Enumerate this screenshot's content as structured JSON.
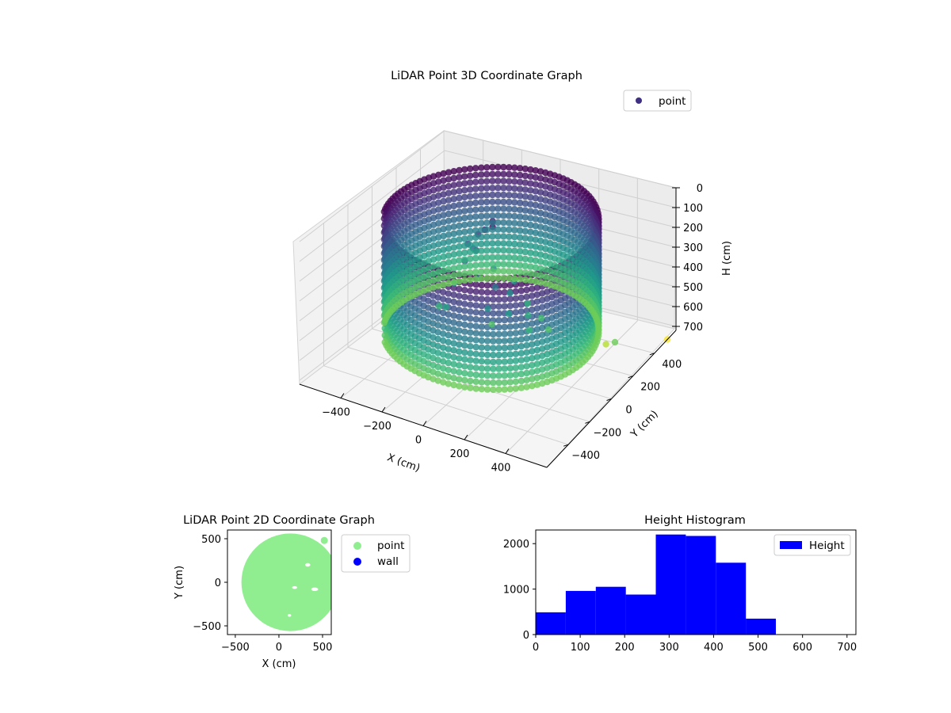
{
  "chart_data": [
    {
      "type": "scatter",
      "projection": "3d",
      "title": "LiDAR Point 3D Coordinate Graph",
      "xlabel": "X (cm)",
      "ylabel": "Y (cm)",
      "zlabel": "H (cm)",
      "xlim": [
        -600,
        600
      ],
      "ylim": [
        -600,
        600
      ],
      "zlim": [
        0,
        720
      ],
      "z_axis_inverted": true,
      "xticks": [
        -400,
        -200,
        0,
        200,
        400
      ],
      "xtick_labels": [
        "−400",
        "−200",
        "0",
        "200",
        "400"
      ],
      "yticks": [
        -400,
        -200,
        0,
        200,
        400
      ],
      "ytick_labels": [
        "−400",
        "−200",
        "0",
        "200",
        "400"
      ],
      "zticks": [
        0,
        100,
        200,
        300,
        400,
        500,
        600,
        700
      ],
      "ztick_labels": [
        "0",
        "100",
        "200",
        "300",
        "400",
        "500",
        "600",
        "700"
      ],
      "grid": true,
      "legend": {
        "placement": "top-right",
        "entries": [
          "point"
        ]
      },
      "colormap": "viridis",
      "color_by": "H (cm)",
      "series": [
        {
          "name": "point",
          "legend_color": "#3e2f83",
          "shape": "cylindrical wall, radius ~470, H 0-560, plus central cluster",
          "wall_radius": 470,
          "wall_h_range": [
            0,
            560
          ],
          "interior_points": [
            [
              -80,
              20,
              100
            ],
            [
              -60,
              -30,
              150
            ],
            [
              -40,
              10,
              60
            ],
            [
              -100,
              -60,
              200
            ],
            [
              -20,
              -80,
              250
            ],
            [
              40,
              -40,
              300
            ],
            [
              80,
              20,
              350
            ],
            [
              120,
              -60,
              400
            ],
            [
              160,
              40,
              450
            ],
            [
              200,
              -20,
              480
            ],
            [
              -140,
              80,
              220
            ],
            [
              -60,
              120,
              320
            ],
            [
              20,
              160,
              380
            ],
            [
              100,
              140,
              460
            ],
            [
              180,
              120,
              500
            ],
            [
              -160,
              -120,
              420
            ],
            [
              -200,
              20,
              380
            ],
            [
              60,
              -140,
              350
            ],
            [
              0,
              0,
              520
            ],
            [
              -120,
              0,
              150
            ],
            [
              240,
              80,
              520
            ],
            [
              -240,
              -40,
              480
            ],
            [
              -30,
              60,
              40
            ],
            [
              10,
              -10,
              20
            ]
          ],
          "outlier_points": [
            [
              520,
              180,
              560
            ],
            [
              600,
              520,
              720
            ],
            [
              430,
              260,
              640
            ]
          ]
        }
      ]
    },
    {
      "type": "scatter",
      "title": "LiDAR Point 2D Coordinate Graph",
      "xlabel": "X (cm)",
      "ylabel": "Y (cm)",
      "xlim": [
        -590,
        600
      ],
      "ylim": [
        -600,
        600
      ],
      "xticks": [
        -500,
        0,
        500
      ],
      "xtick_labels": [
        "−500",
        "0",
        "500"
      ],
      "yticks": [
        -500,
        0,
        500
      ],
      "ytick_labels": [
        "−500",
        "0",
        "500"
      ],
      "legend": {
        "placement": "outside-right",
        "entries": [
          "point",
          "wall"
        ]
      },
      "series": [
        {
          "name": "point",
          "color": "#90ee90",
          "shape": "filled disc",
          "center": [
            130,
            0
          ],
          "radius": 560
        },
        {
          "name": "wall",
          "color": "#0000ff",
          "points": []
        }
      ],
      "extra_points": [
        [
          520,
          480
        ]
      ]
    },
    {
      "type": "bar",
      "subtype": "histogram",
      "title": "Height Histogram",
      "xlabel": "",
      "ylabel": "",
      "xlim": [
        0,
        720
      ],
      "ylim": [
        0,
        2300
      ],
      "xticks": [
        0,
        100,
        200,
        300,
        400,
        500,
        600,
        700
      ],
      "yticks": [
        0,
        1000,
        2000
      ],
      "bin_edges": [
        0,
        67.5,
        135,
        202.5,
        270,
        337.5,
        405,
        472.5,
        540,
        607.5,
        675
      ],
      "values": [
        490,
        960,
        1050,
        880,
        2200,
        2170,
        1580,
        350,
        5,
        2
      ],
      "legend": {
        "placement": "top-right",
        "entries": [
          "Height"
        ]
      },
      "series": [
        {
          "name": "Height",
          "color": "#0000ff"
        }
      ]
    }
  ]
}
